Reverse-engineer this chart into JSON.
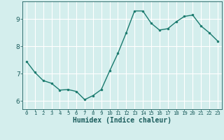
{
  "xlabel": "Humidex (Indice chaleur)",
  "ylabel": "",
  "x": [
    0,
    1,
    2,
    3,
    4,
    5,
    6,
    7,
    8,
    9,
    10,
    11,
    12,
    13,
    14,
    15,
    16,
    17,
    18,
    19,
    20,
    21,
    22,
    23
  ],
  "y": [
    7.45,
    7.05,
    6.75,
    6.65,
    6.4,
    6.42,
    6.35,
    6.05,
    6.2,
    6.42,
    7.1,
    7.75,
    8.5,
    9.3,
    9.3,
    8.85,
    8.6,
    8.65,
    8.9,
    9.1,
    9.15,
    8.75,
    8.5,
    8.2
  ],
  "line_color": "#1a7a6e",
  "marker": "o",
  "marker_size": 2.0,
  "bg_color": "#d4eeed",
  "grid_color": "#ffffff",
  "tick_color": "#1a5c5c",
  "ylim": [
    5.7,
    9.65
  ],
  "yticks": [
    6,
    7,
    8,
    9
  ],
  "xlim": [
    -0.5,
    23.5
  ],
  "line_width": 1.0,
  "xlabel_fontsize": 7.0,
  "tick_fontsize_x": 5.2,
  "tick_fontsize_y": 6.5
}
